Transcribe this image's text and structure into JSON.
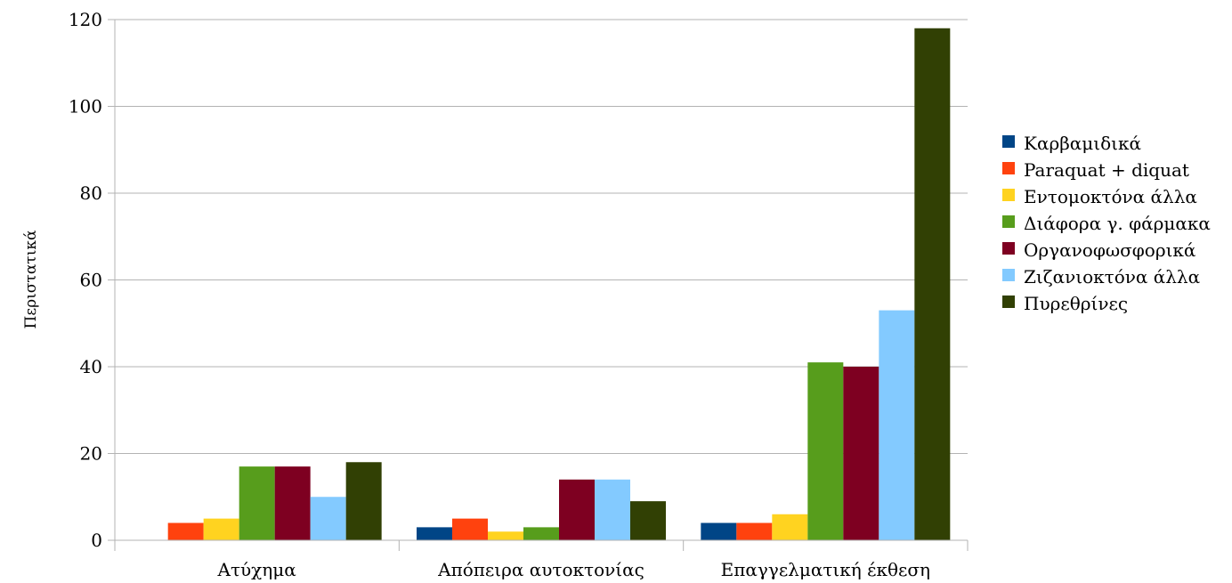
{
  "chart_data": {
    "type": "bar",
    "title": "",
    "xlabel": "",
    "ylabel": "Περιστατικά",
    "ylim": [
      0,
      120
    ],
    "yticks": [
      0,
      20,
      40,
      60,
      80,
      100,
      120
    ],
    "grid": true,
    "legend_position": "right",
    "categories": [
      "Ατύχημα",
      "Απόπειρα αυτοκτονίας",
      "Επαγγελματική έκθεση"
    ],
    "series": [
      {
        "name": "Καρβαμιδικά",
        "color": "#004586",
        "values": [
          0,
          3,
          4
        ]
      },
      {
        "name": "Paraquat + diquat",
        "color": "#ff420e",
        "values": [
          4,
          5,
          4
        ]
      },
      {
        "name": "Εντομοκτόνα άλλα",
        "color": "#ffd320",
        "values": [
          5,
          2,
          6
        ]
      },
      {
        "name": "Διάφορα γ. φάρμακα",
        "color": "#579d1c",
        "values": [
          17,
          3,
          41
        ]
      },
      {
        "name": "Οργανοφωσφορικά",
        "color": "#7e0021",
        "values": [
          17,
          14,
          40
        ]
      },
      {
        "name": "Ζιζανιοκτόνα άλλα",
        "color": "#83caff",
        "values": [
          10,
          14,
          53
        ]
      },
      {
        "name": "Πυρεθρίνες",
        "color": "#314004",
        "values": [
          18,
          9,
          118
        ]
      }
    ]
  }
}
